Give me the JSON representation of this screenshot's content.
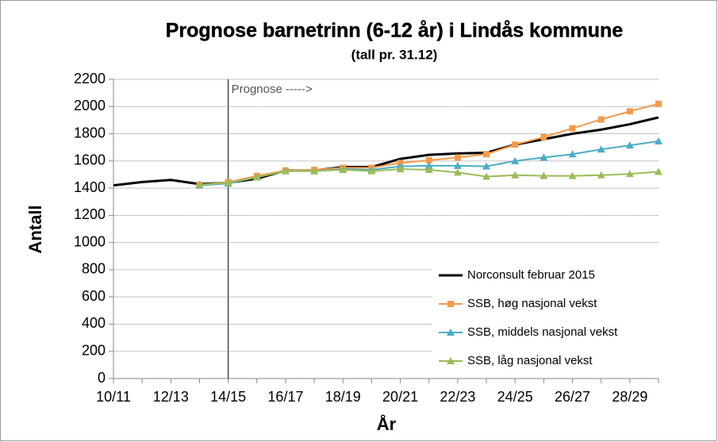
{
  "chart_data": {
    "type": "line",
    "title": "Prognose barnetrinn (6-12 år) i Lindås kommune",
    "subtitle": "(tall pr. 31.12)",
    "x_label": "År",
    "y_label": "Antall",
    "categories": [
      "10/11",
      null,
      "12/13",
      null,
      "14/15",
      null,
      "16/17",
      null,
      "18/19",
      null,
      "20/21",
      null,
      "22/23",
      null,
      "24/25",
      null,
      "26/27",
      null,
      "28/29",
      null
    ],
    "series": [
      {
        "name": "Norconsult februar 2015",
        "color": "#000000",
        "marker": "none",
        "values": [
          1420,
          1445,
          1460,
          1430,
          1440,
          1470,
          1530,
          1530,
          1555,
          1555,
          1615,
          1645,
          1655,
          1660,
          1720,
          1760,
          1800,
          1830,
          1870,
          1920
        ]
      },
      {
        "name": "SSB, høg nasjonal vekst",
        "color": "#f59a4a",
        "marker": "square",
        "values": [
          null,
          null,
          null,
          1425,
          1445,
          1490,
          1530,
          1535,
          1550,
          1550,
          1585,
          1605,
          1625,
          1650,
          1720,
          1775,
          1840,
          1905,
          1965,
          2020
        ]
      },
      {
        "name": "SSB, middels nasjonal vekst",
        "color": "#4bacc6",
        "marker": "triangle",
        "values": [
          null,
          null,
          null,
          1420,
          1435,
          1480,
          1525,
          1525,
          1540,
          1535,
          1560,
          1565,
          1565,
          1560,
          1600,
          1625,
          1650,
          1685,
          1715,
          1745
        ]
      },
      {
        "name": "SSB, låg nasjonal vekst",
        "color": "#9bbb59",
        "marker": "triangle",
        "values": [
          null,
          null,
          null,
          1425,
          1440,
          1480,
          1525,
          1525,
          1535,
          1525,
          1540,
          1535,
          1515,
          1485,
          1495,
          1490,
          1490,
          1495,
          1505,
          1520
        ]
      }
    ],
    "annotations": [
      {
        "text": "Prognose ----->",
        "x": "14/15"
      }
    ],
    "ylim": [
      0,
      2200
    ],
    "yticks": [
      0,
      200,
      400,
      600,
      800,
      1000,
      1200,
      1400,
      1600,
      1800,
      2000,
      2200
    ],
    "grid": true,
    "legend": "lower right"
  }
}
